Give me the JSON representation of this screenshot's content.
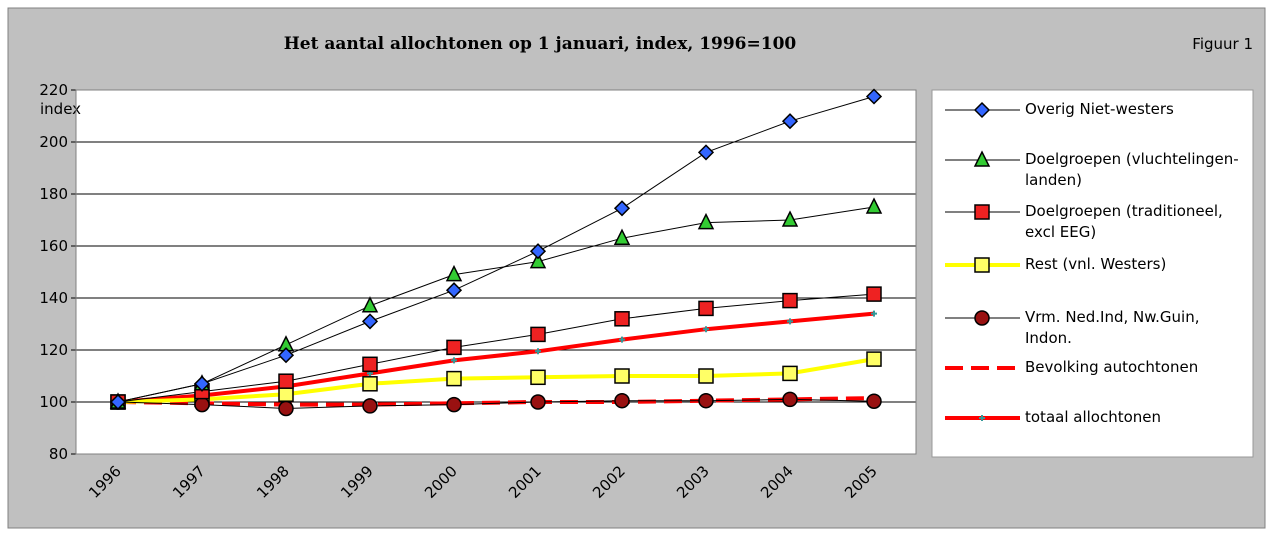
{
  "chart_data": {
    "type": "line",
    "title": "Het aantal allochtonen op 1 januari, index, 1996=100",
    "figure_label": "Figuur 1",
    "y_label": "index",
    "categories": [
      "1996",
      "1997",
      "1998",
      "1999",
      "2000",
      "2001",
      "2002",
      "2003",
      "2004",
      "2005"
    ],
    "ylim": [
      80,
      220
    ],
    "yticks": [
      80,
      100,
      120,
      140,
      160,
      180,
      200,
      220
    ],
    "grid": true,
    "series": [
      {
        "name": "Overig Niet-westers",
        "color": "#000000",
        "marker": "diamond",
        "marker_color": "#3366ff",
        "values": [
          100,
          107,
          118,
          131,
          143,
          158,
          174.5,
          196,
          208,
          217.5
        ]
      },
      {
        "name": "Doelgroepen (vluchtelingen-landen)",
        "color": "#000000",
        "marker": "triangle",
        "marker_color": "#33cc33",
        "values": [
          100,
          107,
          122,
          137,
          149,
          154,
          163,
          169,
          170,
          175
        ]
      },
      {
        "name": "Doelgroepen (traditioneel, excl EEG)",
        "color": "#000000",
        "marker": "square",
        "marker_color": "#ee2222",
        "values": [
          100,
          104,
          108,
          114.5,
          121,
          126,
          132,
          136,
          139,
          141.5
        ]
      },
      {
        "name": "Rest (vnl. Westers)",
        "color": "#ffff00",
        "marker": "square",
        "marker_color": "#ffff66",
        "values": [
          100,
          101,
          103,
          107,
          109,
          109.5,
          110,
          110,
          111,
          116.5
        ]
      },
      {
        "name": "Vrm. Ned.Ind, Nw.Guin, Indon.",
        "color": "#000000",
        "marker": "circle",
        "marker_color": "#991111",
        "values": [
          100,
          99,
          97.5,
          98.5,
          99,
          100,
          100.5,
          100.5,
          101,
          100.3
        ]
      },
      {
        "name": "Bevolking autochtonen",
        "color": "#ff0000",
        "marker": "dash",
        "marker_color": "#ff0000",
        "values": [
          100,
          99.5,
          99,
          99,
          99.5,
          100,
          100,
          100.5,
          101,
          101.5
        ]
      },
      {
        "name": "totaal allochtonen",
        "color": "#ff0000",
        "marker": "plus",
        "marker_color": "#339999",
        "values": [
          100,
          102.5,
          106,
          111,
          116,
          119.5,
          124,
          128,
          131,
          134
        ]
      }
    ]
  }
}
